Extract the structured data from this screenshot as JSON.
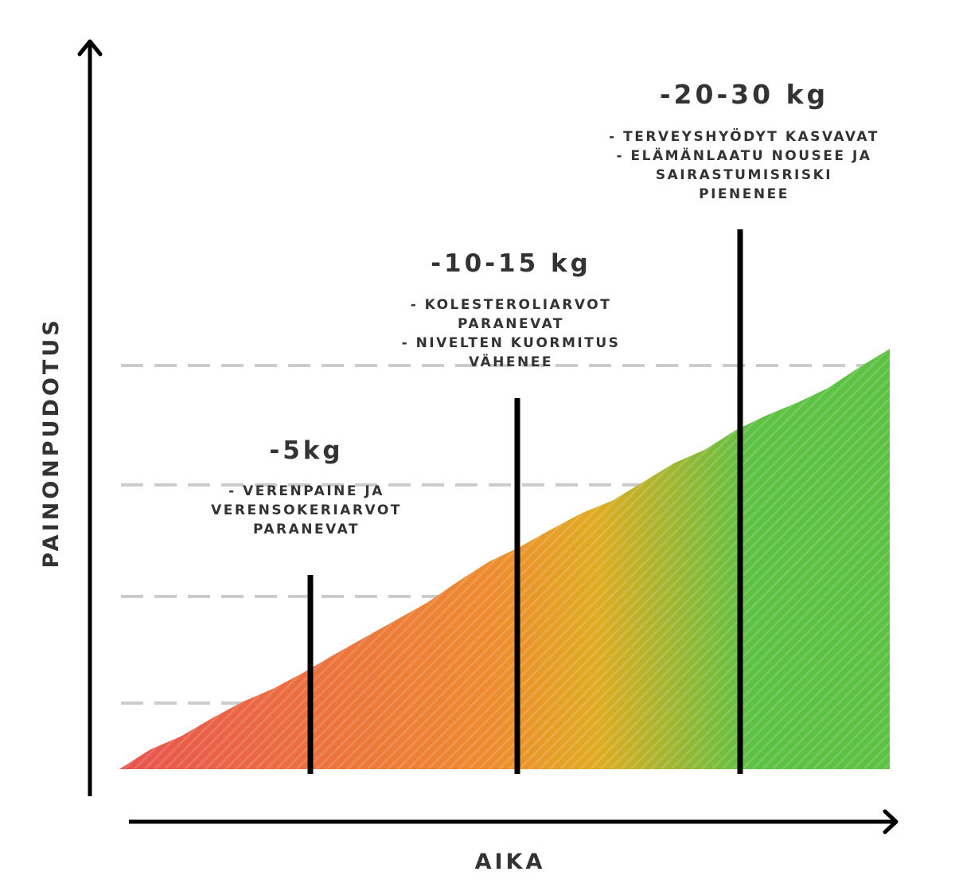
{
  "chart_data": {
    "type": "area",
    "xlabel": "AIKA",
    "ylabel": "PAINONPUDOTUS",
    "grid": true,
    "x": [
      0,
      0.04,
      0.08,
      0.12,
      0.16,
      0.2,
      0.24,
      0.28,
      0.32,
      0.36,
      0.4,
      0.44,
      0.48,
      0.52,
      0.56,
      0.6,
      0.64,
      0.68,
      0.72,
      0.76,
      0.8,
      0.84,
      0.88,
      0.92,
      0.96,
      1.0
    ],
    "y": [
      0,
      2.5,
      4.2,
      6.5,
      8.6,
      10.3,
      12.4,
      14.7,
      16.9,
      19.1,
      21.3,
      24.0,
      26.5,
      28.4,
      30.6,
      32.7,
      34.3,
      36.7,
      39.1,
      40.8,
      43.3,
      45.2,
      46.8,
      48.7,
      51.3,
      53.7
    ],
    "milestones": [
      {
        "kg": "-5kg",
        "lines": [
          "- VERENPAINE JA",
          "VERENSOKERIARVOT",
          "PARANEVAT"
        ]
      },
      {
        "kg": "-10-15 kg",
        "lines": [
          "- KOLESTEROLIARVOT",
          "PARANEVAT",
          "- NIVELTEN KUORMITUS",
          "VÄHENEE"
        ]
      },
      {
        "kg": "-20-30 kg",
        "lines": [
          "- TERVEYSHYÖDYT KASVAVAT",
          "- ELÄMÄNLAATU NOUSEE JA",
          "SAIRASTUMISRISKI",
          "PIENENEE"
        ]
      }
    ],
    "colors": {
      "gradient_start": "#e8534f",
      "gradient_mid": "#ee8b2f",
      "gradient_mid2": "#e0ac22",
      "gradient_end": "#5dc144",
      "grid": "#cccccc",
      "axis": "#000000",
      "text": "#333333"
    }
  }
}
